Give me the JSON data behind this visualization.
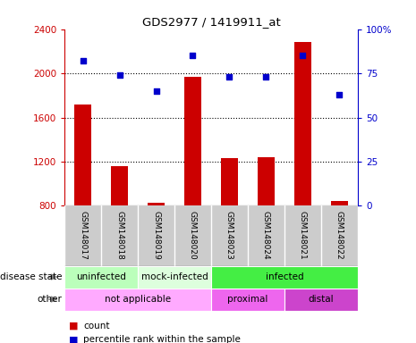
{
  "title": "GDS2977 / 1419911_at",
  "samples": [
    "GSM148017",
    "GSM148018",
    "GSM148019",
    "GSM148020",
    "GSM148023",
    "GSM148024",
    "GSM148021",
    "GSM148022"
  ],
  "counts": [
    1720,
    1160,
    830,
    1970,
    1230,
    1240,
    2280,
    840
  ],
  "percentiles": [
    82,
    74,
    65,
    85,
    73,
    73,
    85,
    63
  ],
  "ylim_left": [
    800,
    2400
  ],
  "ylim_right": [
    0,
    100
  ],
  "yticks_left": [
    800,
    1200,
    1600,
    2000,
    2400
  ],
  "yticks_right": [
    0,
    25,
    50,
    75,
    100
  ],
  "ytick_right_labels": [
    "0",
    "25",
    "50",
    "75",
    "100%"
  ],
  "bar_color": "#cc0000",
  "dot_color": "#0000cc",
  "grid_color": "#000000",
  "disease_state_groups": [
    {
      "label": "uninfected",
      "start": 0,
      "end": 2,
      "color": "#bbffbb"
    },
    {
      "label": "mock-infected",
      "start": 2,
      "end": 4,
      "color": "#ddffdd"
    },
    {
      "label": "infected",
      "start": 4,
      "end": 8,
      "color": "#44ee44"
    }
  ],
  "other_groups": [
    {
      "label": "not applicable",
      "start": 0,
      "end": 4,
      "color": "#ffaaff"
    },
    {
      "label": "proximal",
      "start": 4,
      "end": 6,
      "color": "#ee66ee"
    },
    {
      "label": "distal",
      "start": 6,
      "end": 8,
      "color": "#cc44cc"
    }
  ],
  "row_labels": [
    "disease state",
    "other"
  ],
  "legend_count_color": "#cc0000",
  "legend_dot_color": "#0000cc",
  "tick_label_color_left": "#cc0000",
  "tick_label_color_right": "#0000cc",
  "background_color": "#ffffff",
  "plot_area_bg": "#ffffff",
  "xtick_box_color": "#cccccc"
}
